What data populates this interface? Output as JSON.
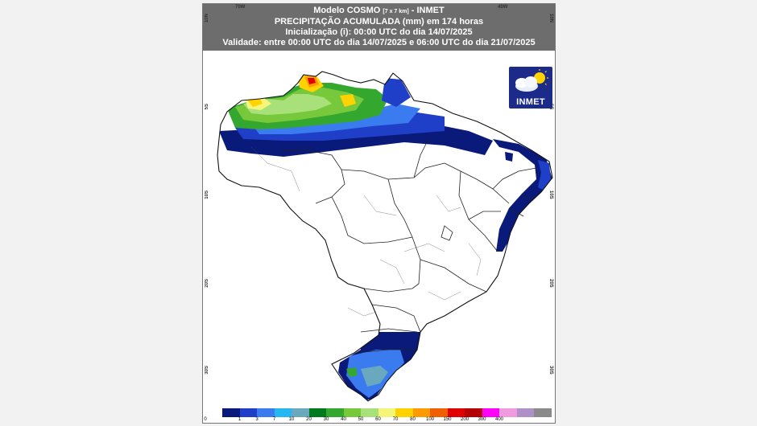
{
  "header": {
    "line1_main": "Modelo COSMO",
    "line1_small": "[7 x 7 km]",
    "line1_suffix": "- INMET",
    "line2": "PRECIPITAÇÃO ACUMULADA (mm) em 174 horas",
    "line3": "Inicialização (i): 00:00 UTC do dia 14/07/2025",
    "line4": "Validade: entre 00:00 UTC do dia 14/07/2025 e 06:00 UTC do dia 21/07/2025"
  },
  "axes": {
    "lon_labels": [
      "70W",
      "40W"
    ],
    "lat_labels": [
      "5S",
      "10S",
      "20S",
      "30S"
    ],
    "top_left_corner": "10N"
  },
  "logo": {
    "text": "INMET",
    "icon": "cloud-sun-icon"
  },
  "legend": {
    "colors": [
      "#0a1a7a",
      "#1f3fc8",
      "#3a7cf0",
      "#25b7f0",
      "#6aa8c0",
      "#007a1e",
      "#34a82e",
      "#78c83c",
      "#a8e07a",
      "#f5f57a",
      "#ffd200",
      "#ff9a00",
      "#f06000",
      "#e00000",
      "#b40000",
      "#ff00ff",
      "#f09ae0",
      "#b090c8",
      "#8a8a8a"
    ],
    "ticks": [
      "0",
      "1",
      "3",
      "7",
      "10",
      "20",
      "30",
      "40",
      "50",
      "60",
      "70",
      "80",
      "100",
      "150",
      "200",
      "300",
      "400"
    ]
  }
}
